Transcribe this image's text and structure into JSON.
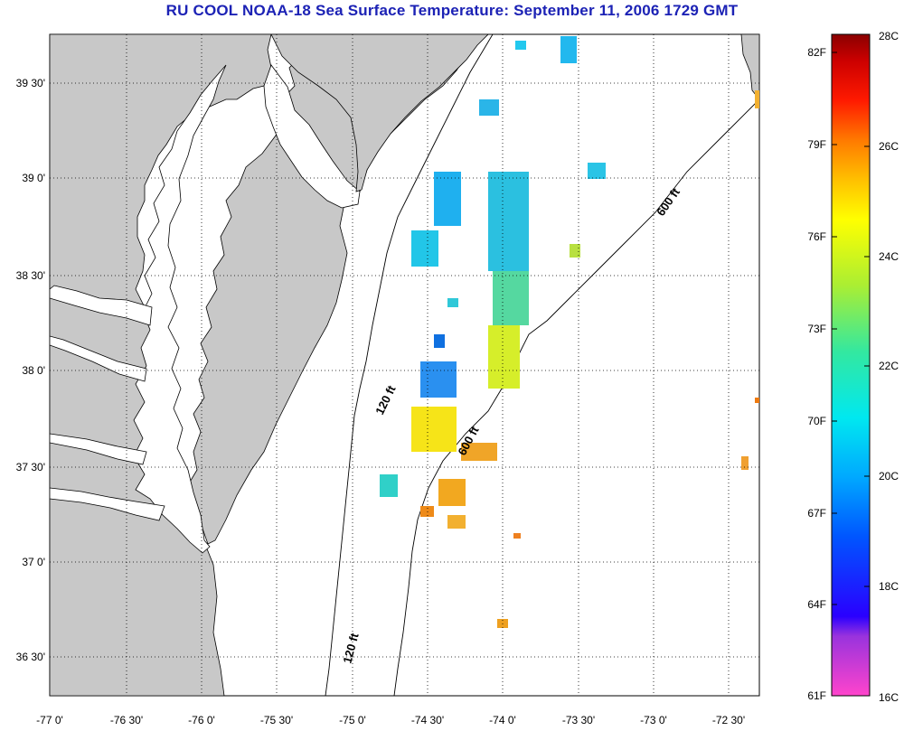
{
  "title": "RU COOL  NOAA-18  Sea Surface Temperature:  September 11, 2006 1729 GMT",
  "colors": {
    "title": "#1c22b5",
    "land": "#c8c8c8",
    "ocean": "#ffffff",
    "grid": "#000000"
  },
  "map": {
    "lon_labels": [
      "-77 0'",
      "-76 30'",
      "-76 0'",
      "-75 30'",
      "-75 0'",
      "-74 30'",
      "-74 0'",
      "-73 30'",
      "-73 0'",
      "-72 30'"
    ],
    "lat_labels": [
      "39 30'",
      "39 0'",
      "38 30'",
      "38 0'",
      "37 30'",
      "37 0'",
      "36 30'"
    ],
    "contours": [
      {
        "label": "600 ft"
      },
      {
        "label": "600 ft"
      },
      {
        "label": "120 ft"
      },
      {
        "label": "120 ft"
      }
    ]
  },
  "colorbar": {
    "f_labels": [
      "82F",
      "79F",
      "76F",
      "73F",
      "70F",
      "67F",
      "64F",
      "61F"
    ],
    "c_labels": [
      "28C",
      "26C",
      "24C",
      "22C",
      "20C",
      "18C",
      "16C"
    ]
  }
}
